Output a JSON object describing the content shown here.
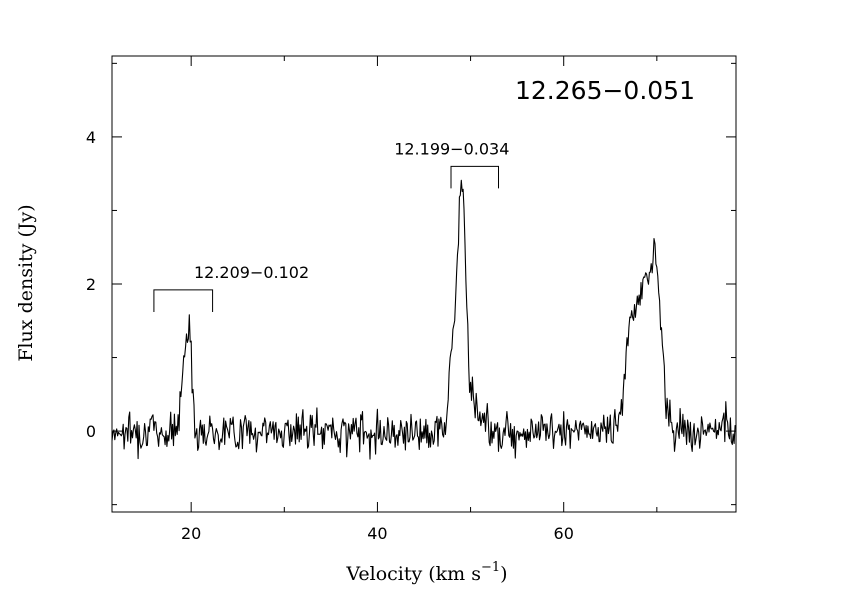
{
  "chart_data": {
    "type": "line",
    "title": "12.265−0.051",
    "xlabel": "Velocity (km s",
    "xlabel_sup": "−1",
    "xlabel_close": ")",
    "ylabel": "Flux density (Jy)",
    "xlim": [
      11.5,
      78.5
    ],
    "ylim": [
      -1.1,
      5.1
    ],
    "x_ticks": [
      20,
      40,
      60
    ],
    "x_tick_labels": [
      "20",
      "40",
      "60"
    ],
    "y_ticks": [
      0,
      2,
      4
    ],
    "y_tick_labels": [
      "0",
      "2",
      "4"
    ],
    "grid": false,
    "legend": "none",
    "series_color": "#000000",
    "peaks": [
      {
        "v": 19.7,
        "amp": 1.42,
        "w": 0.35
      },
      {
        "v": 19.1,
        "amp": 0.55,
        "w": 0.25
      },
      {
        "v": 49.0,
        "amp": 3.25,
        "w": 0.45
      },
      {
        "v": 48.0,
        "amp": 1.0,
        "w": 0.3
      },
      {
        "v": 50.2,
        "amp": 0.35,
        "w": 0.9
      },
      {
        "v": 67.0,
        "amp": 0.7,
        "w": 0.3
      },
      {
        "v": 68.6,
        "amp": 2.0,
        "w": 1.2
      },
      {
        "v": 70.0,
        "amp": 1.3,
        "w": 0.5
      }
    ],
    "noise_rms": 0.13,
    "annotations": [
      {
        "label": "12.209−0.102",
        "x1": 16.0,
        "x2": 22.3,
        "y_top": 1.92,
        "y_bottom": 1.62
      },
      {
        "label": "12.199−0.034",
        "x1": 47.9,
        "x2": 53.0,
        "y_top": 3.6,
        "y_bottom": 3.3
      }
    ]
  }
}
